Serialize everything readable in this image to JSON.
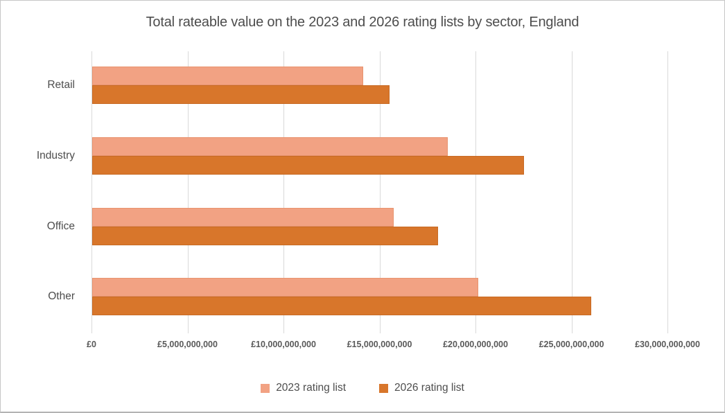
{
  "chart_data": {
    "type": "bar",
    "orientation": "horizontal",
    "title": "Total rateable value on the 2023 and 2026 rating lists by sector, England",
    "categories": [
      "Retail",
      "Industry",
      "Office",
      "Other"
    ],
    "series": [
      {
        "name": "2023 rating list",
        "color": "#F2A283",
        "values": [
          14100000000,
          18500000000,
          15700000000,
          20100000000
        ]
      },
      {
        "name": "2026 rating list",
        "color": "#D8762B",
        "values": [
          15500000000,
          22500000000,
          18000000000,
          26000000000
        ]
      }
    ],
    "xlabel": "",
    "ylabel": "",
    "xlim": [
      0,
      30000000000
    ],
    "x_tick_step": 5000000000,
    "x_tick_labels": [
      "£0",
      "£5,000,000,000",
      "£10,000,000,000",
      "£15,000,000,000",
      "£20,000,000,000",
      "£25,000,000,000",
      "£30,000,000,000"
    ],
    "grid": true,
    "legend_position": "bottom",
    "styles": {
      "grid_color": "#d9d9d9",
      "text_color": "#4d4d4d",
      "tick_text_color": "#595959",
      "background": "#ffffff"
    }
  }
}
